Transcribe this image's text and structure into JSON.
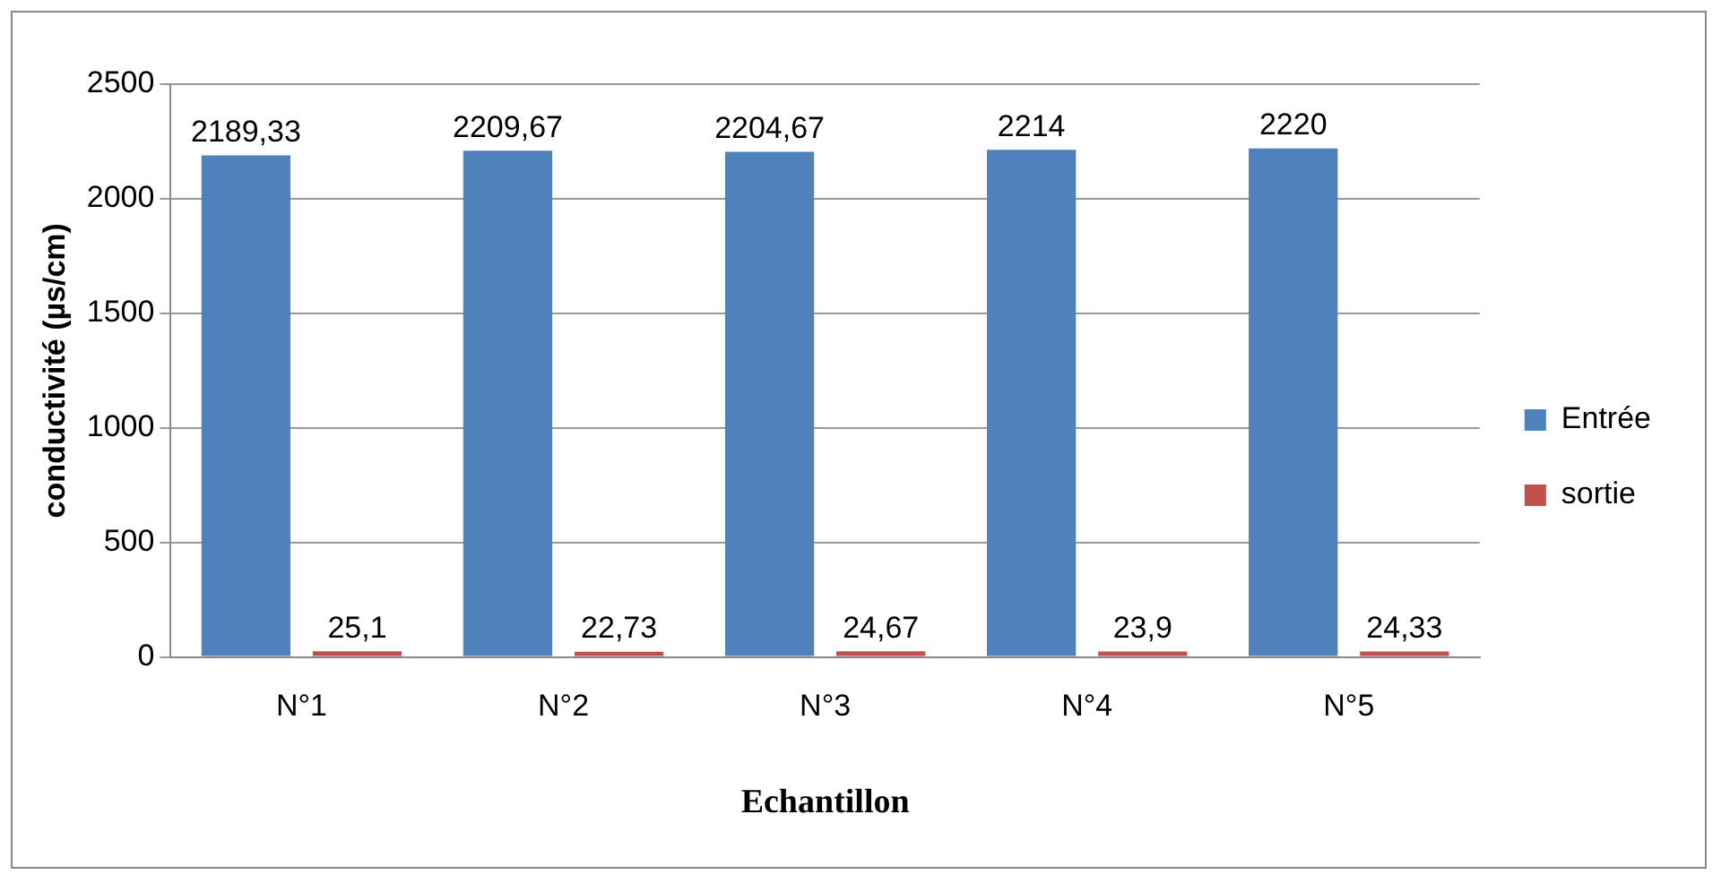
{
  "chart_data": {
    "type": "bar",
    "xlabel": "Echantillon",
    "ylabel": "conductivité (µs/cm)",
    "categories": [
      "N°1",
      "N°2",
      "N°3",
      "N°4",
      "N°5"
    ],
    "series": [
      {
        "name": "Entrée",
        "color": "#4f81bd",
        "values": [
          2189.33,
          2209.67,
          2204.67,
          2214,
          2220
        ],
        "value_labels": [
          "2189,33",
          "2209,67",
          "2204,67",
          "2214",
          "2220"
        ]
      },
      {
        "name": "sortie",
        "color": "#c0504d",
        "values": [
          25.1,
          22.73,
          24.67,
          23.9,
          24.33
        ],
        "value_labels": [
          "25,1",
          "22,73",
          "24,67",
          "23,9",
          "24,33"
        ]
      }
    ],
    "ylim": [
      0,
      2500
    ],
    "yticks": [
      0,
      500,
      1000,
      1500,
      2000,
      2500
    ],
    "grid": "y",
    "legend": "right"
  }
}
